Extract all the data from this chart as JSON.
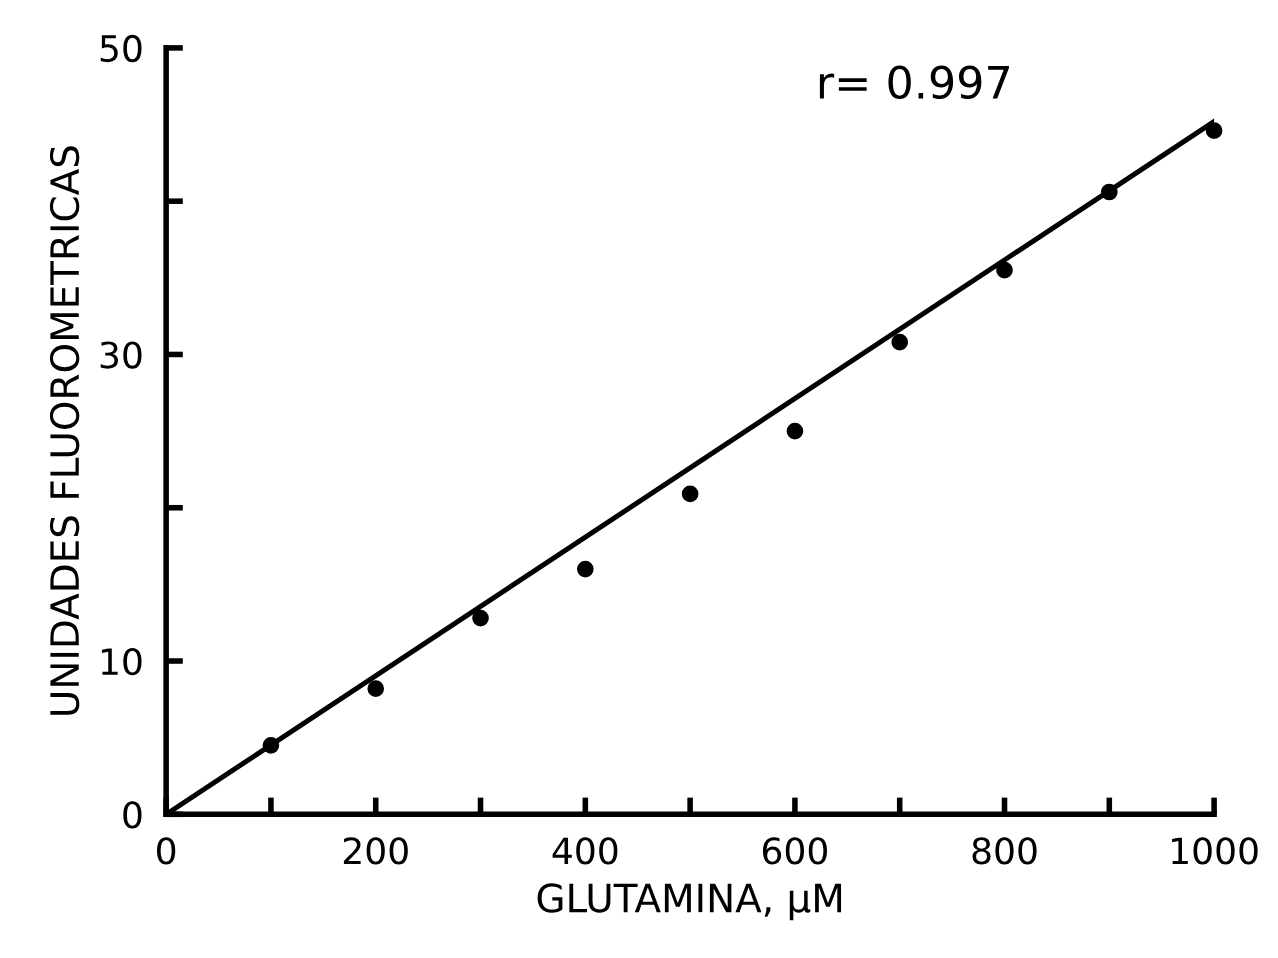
{
  "chart_data": {
    "type": "scatter",
    "xlabel": "GLUTAMINA, μM",
    "ylabel": "UNIDADES FLUOROMETRICAS",
    "annotations": [
      "r= 0.997"
    ],
    "xlim": [
      0,
      1000
    ],
    "ylim": [
      0,
      50
    ],
    "xticks": [
      0,
      {
        "value": 100,
        "label": null
      },
      200,
      {
        "value": 300,
        "label": null
      },
      400,
      {
        "value": 500,
        "label": null
      },
      600,
      {
        "value": 700,
        "label": null
      },
      800,
      {
        "value": 900,
        "label": null
      },
      1000
    ],
    "yticks": [
      0,
      10,
      {
        "value": 20,
        "label": null
      },
      30,
      {
        "value": 40,
        "label": null
      },
      50
    ],
    "grid": false,
    "marker": "circle",
    "series": [
      {
        "color": "#000000",
        "x": [
          100,
          200,
          300,
          400,
          500,
          600,
          700,
          800,
          900,
          1000
        ],
        "values": [
          4.5,
          8.2,
          12.8,
          16.0,
          20.9,
          25.0,
          30.8,
          35.5,
          40.6,
          44.6
        ]
      },
      {
        "type": "line",
        "marker": "none",
        "color": "#000000",
        "x": [
          0,
          1000
        ],
        "values": [
          0,
          45.2
        ]
      }
    ]
  }
}
